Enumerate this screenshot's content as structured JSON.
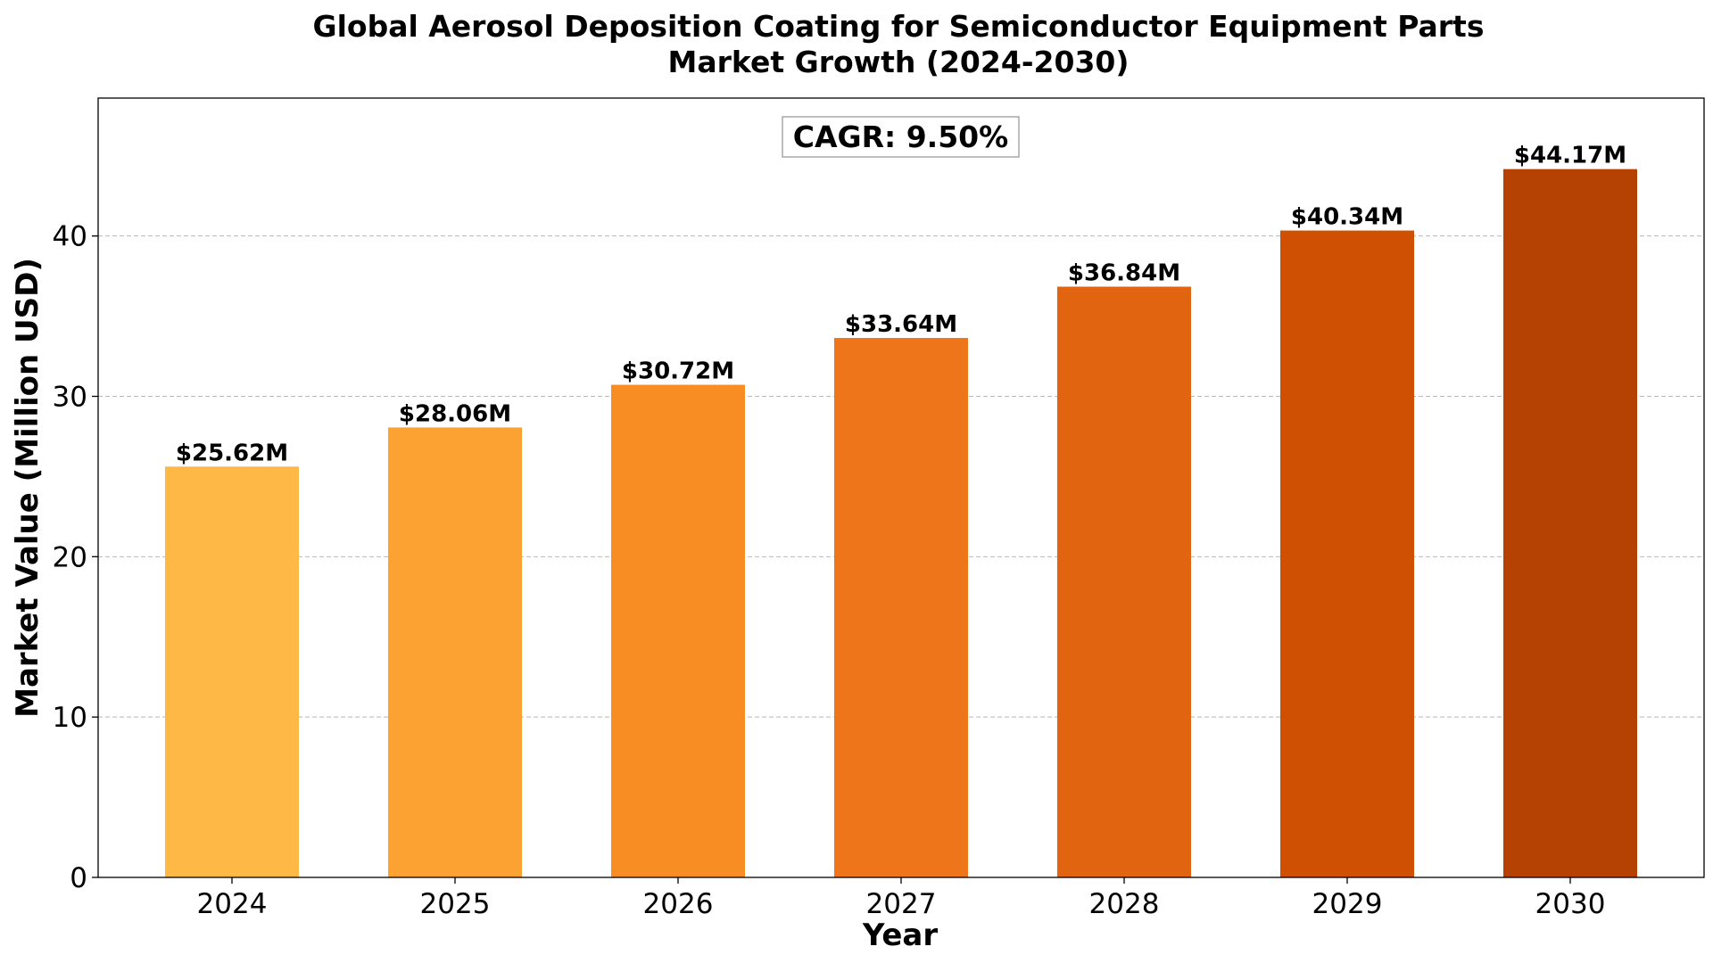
{
  "chart_data": {
    "type": "bar",
    "title_lines": [
      "Global Aerosol Deposition Coating for Semiconductor Equipment Parts",
      "Market Growth (2024-2030)"
    ],
    "xlabel": "Year",
    "ylabel": "Market Value (Million USD)",
    "categories": [
      "2024",
      "2025",
      "2026",
      "2027",
      "2028",
      "2029",
      "2030"
    ],
    "values": [
      25.62,
      28.06,
      30.72,
      33.64,
      36.84,
      40.34,
      44.17
    ],
    "data_labels": [
      "$25.62M",
      "$28.06M",
      "$30.72M",
      "$33.64M",
      "$36.84M",
      "$40.34M",
      "$44.17M"
    ],
    "bar_colors": [
      "#FEB845",
      "#FCA232",
      "#F88D23",
      "#EE751A",
      "#E16410",
      "#CF5002",
      "#B54103"
    ],
    "ylim": [
      0,
      48.6
    ],
    "yticks": [
      0,
      10,
      20,
      30,
      40
    ],
    "grid": "y-dashed",
    "annotation": "CAGR: 9.50%"
  }
}
